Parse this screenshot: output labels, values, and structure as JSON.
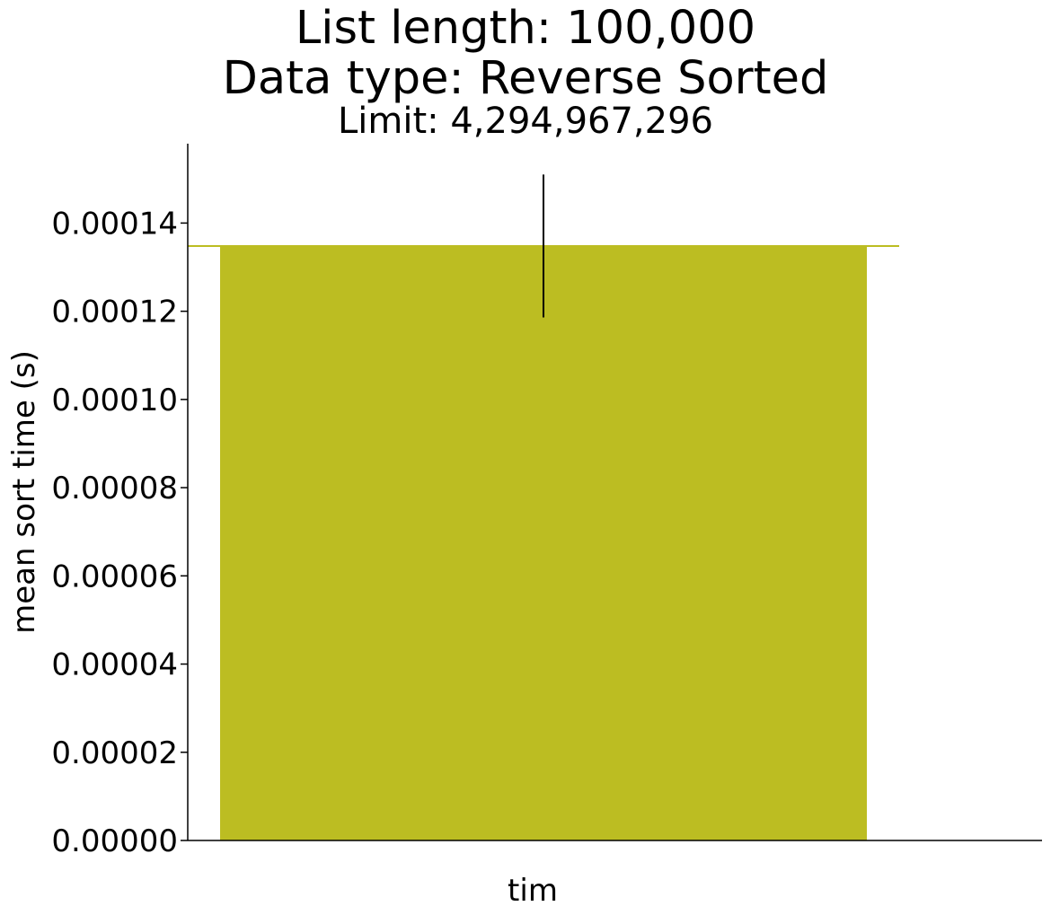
{
  "title": {
    "line1": "List length: 100,000",
    "line2": "Data type: Reverse Sorted",
    "line3": "Limit: 4,294,967,296"
  },
  "chart_data": {
    "type": "bar",
    "title": "List length: 100,000 / Data type: Reverse Sorted / Limit: 4,294,967,296",
    "categories": [
      "tim"
    ],
    "values": [
      0.0001348
    ],
    "error": [
      1.62e-05
    ],
    "bar_color": "#bcbd22",
    "xlabel": "",
    "ylabel": "mean sort time (s)",
    "ylim": [
      0,
      0.000158
    ],
    "yticks": [
      0,
      2e-05,
      4e-05,
      6e-05,
      8e-05,
      0.0001,
      0.00012,
      0.00014
    ],
    "ytick_labels": [
      "0.00000",
      "0.00002",
      "0.00004",
      "0.00006",
      "0.00008",
      "0.00010",
      "0.00012",
      "0.00014"
    ],
    "grid": false
  }
}
